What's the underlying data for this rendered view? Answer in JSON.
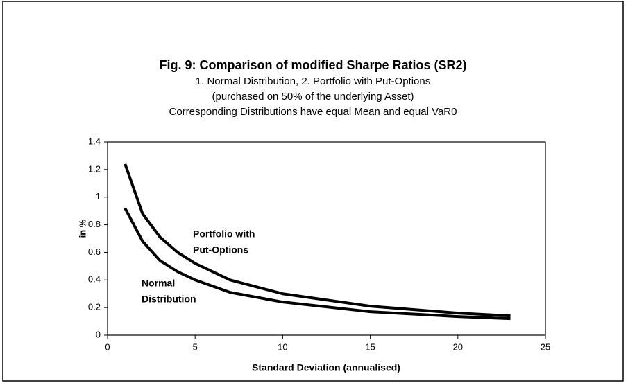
{
  "chart_data": {
    "type": "line",
    "title": "Fig. 9: Comparison of modified Sharpe Ratios (SR2)",
    "subtitle": [
      "1. Normal Distribution, 2. Portfolio with Put-Options",
      "(purchased on 50% of the underlying Asset)",
      "Corresponding Distributions have equal Mean and equal VaR0"
    ],
    "x_label": "Standard Deviation (annualised)",
    "y_label": "in %",
    "x": [
      1,
      2,
      3,
      4,
      5,
      7,
      10,
      15,
      20,
      23
    ],
    "series": [
      {
        "name": "Portfolio with Put-Options",
        "color": "#000000",
        "values": [
          1.24,
          0.88,
          0.71,
          0.6,
          0.52,
          0.4,
          0.3,
          0.21,
          0.16,
          0.14
        ]
      },
      {
        "name": "Normal Distribution",
        "color": "#000000",
        "values": [
          0.92,
          0.68,
          0.54,
          0.46,
          0.4,
          0.31,
          0.24,
          0.17,
          0.135,
          0.12
        ]
      }
    ],
    "annotations": [
      [
        "Portfolio with",
        "Put-Options"
      ],
      [
        "Normal",
        "Distribution"
      ]
    ],
    "xlim": [
      0,
      25
    ],
    "xticks": [
      0,
      5,
      10,
      15,
      20,
      25
    ],
    "ylim": [
      0,
      1.4
    ],
    "yticks": [
      0,
      0.2,
      0.4,
      0.6,
      0.8,
      1,
      1.2,
      1.4
    ],
    "grid": false
  }
}
